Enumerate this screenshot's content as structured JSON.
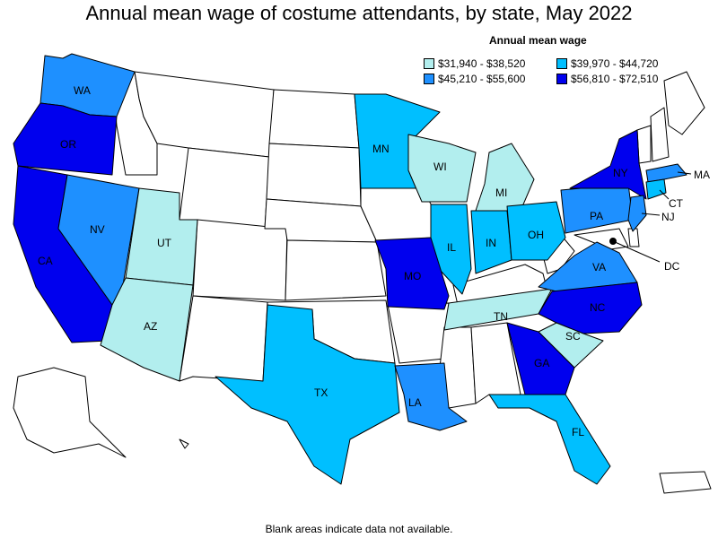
{
  "title": "Annual mean wage of costume attendants, by state, May 2022",
  "legend": {
    "title": "Annual mean wage",
    "items": [
      {
        "label": "$31,940 - $38,520",
        "color": "#b2eeee"
      },
      {
        "label": "$39,970 - $44,720",
        "color": "#00bfff"
      },
      {
        "label": "$45,210 - $55,600",
        "color": "#1e90ff"
      },
      {
        "label": "$56,810 - $72,510",
        "color": "#0000ee"
      }
    ]
  },
  "footnote": "Blank areas indicate data not available.",
  "states": {
    "WA": "$45,210 - $55,600",
    "OR": "$56,810 - $72,510",
    "CA": "$56,810 - $72,510",
    "NV": "$45,210 - $55,600",
    "UT": "$31,940 - $38,520",
    "AZ": "$31,940 - $38,520",
    "TX": "$39,970 - $44,720",
    "MN": "$39,970 - $44,720",
    "WI": "$31,940 - $38,520",
    "MI": "$31,940 - $38,520",
    "IL": "$39,970 - $44,720",
    "IN": "$39,970 - $44,720",
    "OH": "$39,970 - $44,720",
    "PA": "$45,210 - $55,600",
    "NY": "$56,810 - $72,510",
    "MA": "$45,210 - $55,600",
    "CT": "$39,970 - $44,720",
    "NJ": "$45,210 - $55,600",
    "MO": "$56,810 - $72,510",
    "LA": "$45,210 - $55,600",
    "TN": "$31,940 - $38,520",
    "VA": "$45,210 - $55,600",
    "NC": "$56,810 - $72,510",
    "SC": "$31,940 - $38,520",
    "GA": "$56,810 - $72,510",
    "FL": "$39,970 - $44,720",
    "DC": "$56,810 - $72,510"
  }
}
